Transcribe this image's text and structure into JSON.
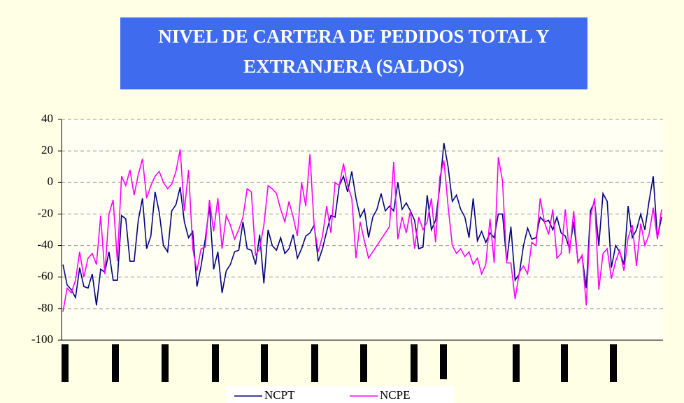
{
  "chart_data": {
    "type": "line",
    "title": [
      "NIVEL DE CARTERA DE PEDIDOS TOTAL Y",
      "EXTRANJERA (SALDOS)"
    ],
    "ylim": [
      -100,
      40
    ],
    "yticks": [
      -100,
      -80,
      -60,
      -40,
      -20,
      0,
      20,
      40
    ],
    "grid": true,
    "legend": "bottom",
    "series": [
      {
        "name": "NCPT",
        "color": "#000080",
        "values": [
          -52,
          -65,
          -68,
          -73,
          -54,
          -66,
          -67,
          -58,
          -78,
          -55,
          -57,
          -44,
          -62,
          -62,
          -21,
          -23,
          -50,
          -50,
          -24,
          -10,
          -42,
          -34,
          -6,
          -19,
          -40,
          -44,
          -18,
          -14,
          -3,
          -25,
          -35,
          -31,
          -66,
          -53,
          -36,
          -15,
          -55,
          -44,
          -70,
          -56,
          -52,
          -44,
          -43,
          -25,
          -42,
          -43,
          -52,
          -33,
          -64,
          -30,
          -40,
          -43,
          -35,
          -45,
          -42,
          -33,
          -48,
          -42,
          -34,
          -32,
          -27,
          -50,
          -42,
          -31,
          -21,
          -22,
          -2,
          4,
          -6,
          7,
          -10,
          -22,
          -17,
          -35,
          -22,
          -17,
          -7,
          -18,
          -15,
          -18,
          0,
          -17,
          -13,
          -18,
          -24,
          -42,
          -41,
          -8,
          -30,
          -24,
          -3,
          25,
          10,
          -12,
          -8,
          -17,
          -22,
          -35,
          -10,
          -37,
          -31,
          -38,
          -32,
          -35,
          -20,
          -20,
          -50,
          -28,
          -62,
          -58,
          -40,
          -29,
          -36,
          -35,
          -22,
          -25,
          -24,
          -30,
          -22,
          -32,
          -34,
          -42,
          -25,
          -50,
          -47,
          -67,
          -18,
          -12,
          -40,
          -7,
          -12,
          -54,
          -40,
          -44,
          -52,
          -15,
          -35,
          -30,
          -20,
          -30,
          -12,
          4,
          -35,
          -22
        ]
      },
      {
        "name": "NCPE",
        "color": "#ff00ff",
        "values": [
          -82,
          -67,
          -70,
          -62,
          -44,
          -60,
          -48,
          -45,
          -52,
          -21,
          -58,
          -20,
          -11,
          -50,
          4,
          -2,
          8,
          -8,
          5,
          15,
          -10,
          -2,
          4,
          7,
          0,
          -4,
          -1,
          7,
          21,
          -18,
          8,
          -42,
          -56,
          -42,
          -41,
          -11,
          -31,
          -10,
          -42,
          -21,
          -27,
          -36,
          -30,
          -22,
          -4,
          -6,
          -46,
          -42,
          -27,
          -2,
          -4,
          -7,
          -17,
          -25,
          -12,
          -22,
          -34,
          0,
          -15,
          18,
          -28,
          -44,
          -34,
          -15,
          -32,
          0,
          -2,
          12,
          -2,
          -10,
          -48,
          -25,
          -37,
          -48,
          -44,
          -40,
          -36,
          -32,
          -28,
          13,
          -36,
          -22,
          -32,
          -18,
          -42,
          -22,
          -30,
          -25,
          -10,
          -38,
          3,
          14,
          -15,
          -40,
          -45,
          -42,
          -47,
          -44,
          -52,
          -48,
          -58,
          -52,
          -23,
          -51,
          16,
          1,
          -51,
          -51,
          -74,
          -57,
          -53,
          -58,
          -38,
          -40,
          -10,
          -25,
          -33,
          -17,
          -48,
          -45,
          -17,
          -45,
          -18,
          -51,
          -46,
          -78,
          -22,
          -10,
          -68,
          -45,
          -42,
          -61,
          -50,
          -43,
          -56,
          -35,
          -27,
          -53,
          -26,
          -40,
          -33,
          -16,
          -36,
          -17
        ]
      }
    ]
  }
}
